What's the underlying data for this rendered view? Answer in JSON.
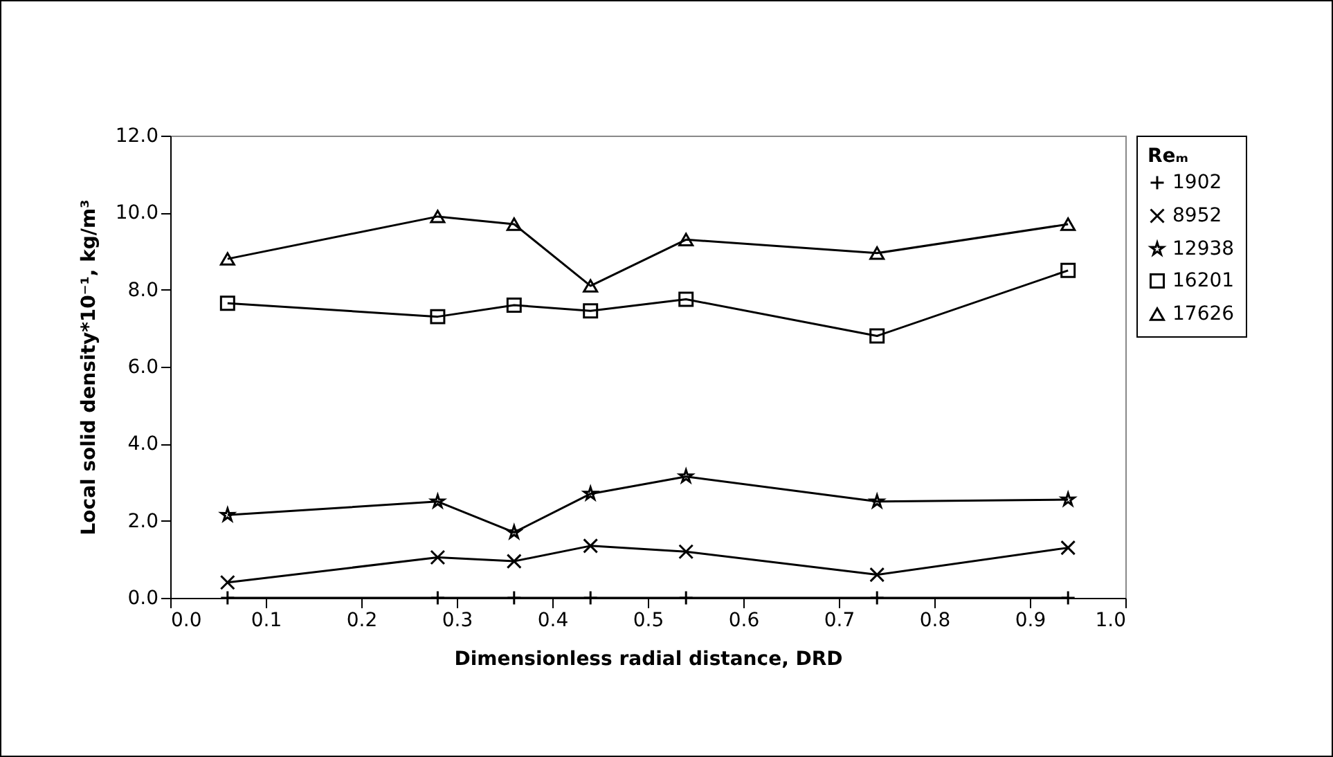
{
  "chart_data": {
    "type": "line",
    "xlabel": "Dimensionless radial distance, DRD",
    "ylabel": "Local  solid density*10⁻¹, kg/m³",
    "legend_title": "Reₘ",
    "legend": "right",
    "grid": false,
    "x": [
      0.06,
      0.28,
      0.36,
      0.44,
      0.54,
      0.74,
      0.94
    ],
    "xlim": [
      0,
      1
    ],
    "xticks": [
      {
        "value": 0,
        "label": "0.0"
      },
      0.1,
      0.2,
      0.3,
      0.4,
      0.5,
      0.6,
      0.7,
      0.8,
      0.9,
      {
        "value": 1,
        "label": "1.0"
      }
    ],
    "ylim": [
      0,
      12
    ],
    "yticks": [
      {
        "value": 0,
        "label": "0.0"
      },
      {
        "value": 2,
        "label": "2.0"
      },
      {
        "value": 4,
        "label": "4.0"
      },
      {
        "value": 6,
        "label": "6.0"
      },
      {
        "value": 8,
        "label": "8.0"
      },
      {
        "value": 10,
        "label": "10.0"
      },
      {
        "value": 12,
        "label": "12.0"
      }
    ],
    "line_style": "solid",
    "series": [
      {
        "name": "1902",
        "color": "#000000",
        "marker": "plus",
        "values": [
          0,
          0,
          0,
          0,
          0,
          0,
          0
        ]
      },
      {
        "name": "8952",
        "color": "#000000",
        "marker": "cross",
        "values": [
          0.4,
          1.05,
          0.95,
          1.35,
          1.2,
          0.6,
          1.3
        ]
      },
      {
        "name": "12938",
        "color": "#000000",
        "marker": "star",
        "values": [
          2.15,
          2.5,
          1.7,
          2.7,
          3.15,
          2.5,
          2.55
        ]
      },
      {
        "name": "16201",
        "color": "#000000",
        "marker": "square",
        "values": [
          7.65,
          7.3,
          7.6,
          7.45,
          7.75,
          6.8,
          8.5
        ]
      },
      {
        "name": "17626",
        "color": "#000000",
        "marker": "triangle",
        "values": [
          8.8,
          9.9,
          9.7,
          8.1,
          9.3,
          8.95,
          9.7
        ]
      }
    ]
  }
}
